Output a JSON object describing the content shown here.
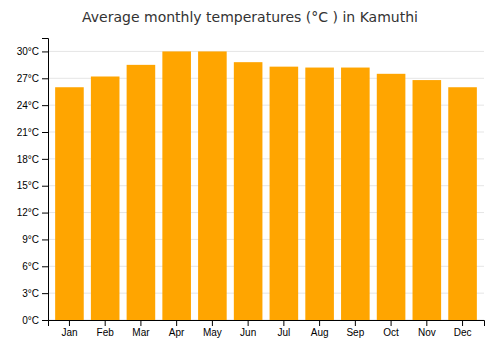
{
  "chart_data": {
    "type": "bar",
    "title": "Average monthly temperatures (°C ) in Kamuthi",
    "categories": [
      "Jan",
      "Feb",
      "Mar",
      "Apr",
      "May",
      "Jun",
      "Jul",
      "Aug",
      "Sep",
      "Oct",
      "Nov",
      "Dec"
    ],
    "values": [
      26.0,
      27.2,
      28.5,
      30.0,
      30.0,
      28.8,
      28.3,
      28.2,
      28.2,
      27.5,
      26.8,
      26.0
    ],
    "color": "#FFA500",
    "ylim": [
      0,
      31.5
    ],
    "yticks": [
      {
        "value": 0,
        "label": "0°C"
      },
      {
        "value": 3,
        "label": "3°C"
      },
      {
        "value": 6,
        "label": "6°C"
      },
      {
        "value": 9,
        "label": "9°C"
      },
      {
        "value": 12,
        "label": "12°C"
      },
      {
        "value": 15,
        "label": "15°C"
      },
      {
        "value": 18,
        "label": "18°C"
      },
      {
        "value": 21,
        "label": "21°C"
      },
      {
        "value": 24,
        "label": "24°C"
      },
      {
        "value": 27,
        "label": "27°C"
      },
      {
        "value": 30,
        "label": "30°C"
      }
    ],
    "grid": true
  }
}
